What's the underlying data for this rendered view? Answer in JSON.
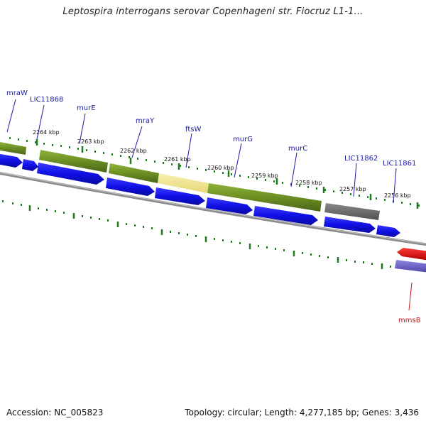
{
  "header": {
    "title": "Leptospira interrogans serovar Copenhageni str. Fiocruz L1-1..."
  },
  "footer": {
    "accession": "Accession: NC_005823",
    "summary": "Topology: circular; Length: 4,277,185 bp; Genes: 3,436"
  },
  "colors": {
    "backbone": "#8c8c8c",
    "cds_blue": "#1010e6",
    "cog_green": "#6b8e23",
    "cog_yellow": "#efe48a",
    "cog_grey": "#6e6e6e",
    "cog_red": "#e01010",
    "cog_purple": "#6a5acd",
    "tick_green": "#1d7a1d",
    "label_blue": "#1a1aa8",
    "label_red": "#cc1111"
  },
  "ruler": {
    "labels": [
      "2264 kbp",
      "2263 kbp",
      "2262 kbp",
      "2261 kbp",
      "2260 kbp",
      "2259 kbp",
      "2258 kbp",
      "2257 kbp",
      "2256 kbp"
    ]
  },
  "gene_labels": {
    "mraW": "mraW",
    "LIC11868": "LIC11868",
    "murE": "murE",
    "mraY": "mraY",
    "ftsW": "ftsW",
    "murG": "murG",
    "murC": "murC",
    "LIC11862": "LIC11862",
    "LIC11861": "LIC11861",
    "mmsB": "mmsB"
  }
}
